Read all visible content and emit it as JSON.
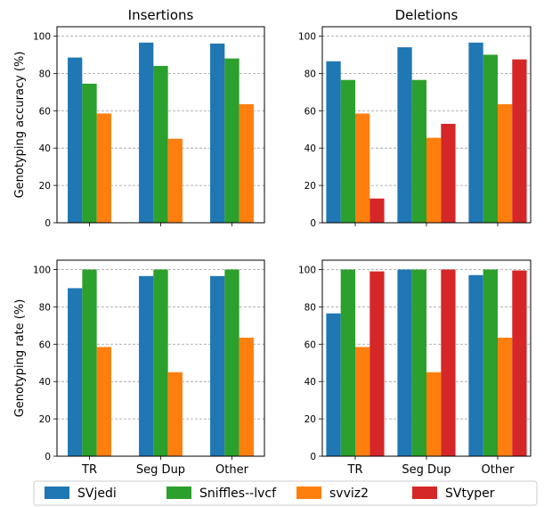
{
  "colors": {
    "SVjedi": "#1f77b4",
    "Sniffles--lvcf": "#2ca02c",
    "svviz2": "#ff7f0e",
    "SVtyper": "#d62728"
  },
  "legend": [
    "SVjedi",
    "Sniffles--lvcf",
    "svviz2",
    "SVtyper"
  ],
  "chart_data": [
    {
      "type": "bar",
      "title": "Insertions",
      "ylabel": "Genotyping accuracy (%)",
      "ylim": [
        0,
        105
      ],
      "yticks": [
        "0",
        "20",
        "40",
        "60",
        "80",
        "100"
      ],
      "categories": [
        "TR",
        "Seg Dup",
        "Other"
      ],
      "grid": "horizontal dashed",
      "series": [
        {
          "name": "SVjedi",
          "values": [
            88.5,
            96.5,
            96
          ]
        },
        {
          "name": "Sniffles--lvcf",
          "values": [
            74.5,
            84,
            88
          ]
        },
        {
          "name": "svviz2",
          "values": [
            58.5,
            45,
            63.5
          ]
        }
      ]
    },
    {
      "type": "bar",
      "title": "Deletions",
      "ylim": [
        0,
        105
      ],
      "yticks": [
        "0",
        "20",
        "40",
        "60",
        "80",
        "100"
      ],
      "categories": [
        "TR",
        "Seg Dup",
        "Other"
      ],
      "grid": "horizontal dashed",
      "series": [
        {
          "name": "SVjedi",
          "values": [
            86.5,
            94,
            96.5
          ]
        },
        {
          "name": "Sniffles--lvcf",
          "values": [
            76.5,
            76.5,
            90
          ]
        },
        {
          "name": "svviz2",
          "values": [
            58.5,
            45.5,
            63.5
          ]
        },
        {
          "name": "SVtyper",
          "values": [
            13,
            53,
            87.5
          ]
        }
      ]
    },
    {
      "type": "bar",
      "ylabel": "Genotyping rate (%)",
      "ylim": [
        0,
        105
      ],
      "yticks": [
        "0",
        "20",
        "40",
        "60",
        "80",
        "100"
      ],
      "categories": [
        "TR",
        "Seg Dup",
        "Other"
      ],
      "grid": "horizontal dashed",
      "series": [
        {
          "name": "SVjedi",
          "values": [
            90,
            96.5,
            96.5
          ]
        },
        {
          "name": "Sniffles--lvcf",
          "values": [
            100,
            100,
            100
          ]
        },
        {
          "name": "svviz2",
          "values": [
            58.5,
            45,
            63.5
          ]
        }
      ]
    },
    {
      "type": "bar",
      "ylim": [
        0,
        105
      ],
      "yticks": [
        "0",
        "20",
        "40",
        "60",
        "80",
        "100"
      ],
      "categories": [
        "TR",
        "Seg Dup",
        "Other"
      ],
      "grid": "horizontal dashed",
      "series": [
        {
          "name": "SVjedi",
          "values": [
            76.5,
            100,
            97
          ]
        },
        {
          "name": "Sniffles--lvcf",
          "values": [
            100,
            100,
            100
          ]
        },
        {
          "name": "svviz2",
          "values": [
            58.5,
            45,
            63.5
          ]
        },
        {
          "name": "SVtyper",
          "values": [
            99,
            100,
            99.5
          ]
        }
      ]
    }
  ]
}
